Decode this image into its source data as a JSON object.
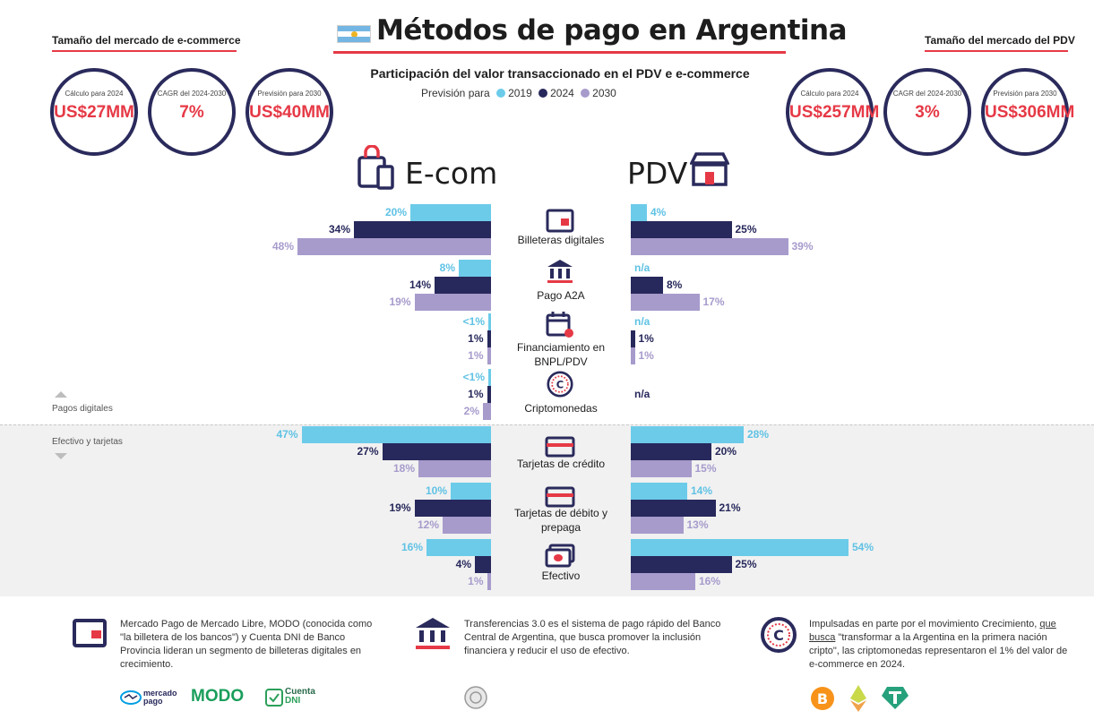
{
  "header": {
    "title": "Métodos de pago en Argentina",
    "subtitle": "Participación del valor transaccionado en el PDV e e-commerce",
    "legend_prefix": "Previsión para",
    "legend": [
      {
        "label": "2019",
        "color": "#6ccbe9"
      },
      {
        "label": "2024",
        "color": "#27285b"
      },
      {
        "label": "2030",
        "color": "#a79bcc"
      }
    ]
  },
  "ecom_market": {
    "title": "Tamaño del mercado de e-commerce",
    "stats": [
      {
        "caption": "Cálculo para 2024",
        "value": "US$27MM"
      },
      {
        "caption": "CAGR del 2024-2030",
        "value": "7%"
      },
      {
        "caption": "Previsión para 2030",
        "value": "US$40MM"
      }
    ]
  },
  "pdv_market": {
    "title": "Tamaño del mercado del PDV",
    "stats": [
      {
        "caption": "Cálculo para 2024",
        "value": "US$257MM"
      },
      {
        "caption": "CAGR del 2024-2030",
        "value": "3%"
      },
      {
        "caption": "Previsión para 2030",
        "value": "US$306MM"
      }
    ]
  },
  "sections": {
    "left": "E-com",
    "right": "PDV"
  },
  "zones": {
    "digital": "Pagos digitales",
    "cash": "Efectivo y tarjetas"
  },
  "chart_data": {
    "type": "bar",
    "series_names": [
      "2019",
      "2024",
      "2030"
    ],
    "categories": [
      {
        "name": "Billeteras digitales",
        "icon": "wallet-icon",
        "ecom": [
          {
            "v": 20,
            "t": "20%"
          },
          {
            "v": 34,
            "t": "34%"
          },
          {
            "v": 48,
            "t": "48%"
          }
        ],
        "pdv": [
          {
            "v": 4,
            "t": "4%"
          },
          {
            "v": 25,
            "t": "25%"
          },
          {
            "v": 39,
            "t": "39%"
          }
        ]
      },
      {
        "name": "Pago A2A",
        "icon": "bank-icon",
        "ecom": [
          {
            "v": 8,
            "t": "8%"
          },
          {
            "v": 14,
            "t": "14%"
          },
          {
            "v": 19,
            "t": "19%"
          }
        ],
        "pdv": [
          {
            "v": 0,
            "t": "n/a"
          },
          {
            "v": 8,
            "t": "8%"
          },
          {
            "v": 17,
            "t": "17%"
          }
        ]
      },
      {
        "name": "Financiamiento en BNPL/PDV",
        "icon": "calendar-icon",
        "ecom": [
          {
            "v": 0.5,
            "t": "<1%"
          },
          {
            "v": 1,
            "t": "1%"
          },
          {
            "v": 1,
            "t": "1%"
          }
        ],
        "pdv": [
          {
            "v": 0,
            "t": "n/a"
          },
          {
            "v": 1,
            "t": "1%"
          },
          {
            "v": 1,
            "t": "1%"
          }
        ]
      },
      {
        "name": "Criptomonedas",
        "icon": "crypto-coin-icon",
        "ecom": [
          {
            "v": 0.5,
            "t": "<1%"
          },
          {
            "v": 1,
            "t": "1%"
          },
          {
            "v": 2,
            "t": "2%"
          }
        ],
        "pdv": [
          {
            "v": 0,
            "t": ""
          },
          {
            "v": 0,
            "t": "n/a"
          },
          {
            "v": 0,
            "t": ""
          }
        ]
      },
      {
        "name": "Tarjetas de crédito",
        "icon": "credit-card-icon",
        "ecom": [
          {
            "v": 47,
            "t": "47%"
          },
          {
            "v": 27,
            "t": "27%"
          },
          {
            "v": 18,
            "t": "18%"
          }
        ],
        "pdv": [
          {
            "v": 28,
            "t": "28%"
          },
          {
            "v": 20,
            "t": "20%"
          },
          {
            "v": 15,
            "t": "15%"
          }
        ]
      },
      {
        "name": "Tarjetas de débito y prepaga",
        "icon": "debit-card-icon",
        "ecom": [
          {
            "v": 10,
            "t": "10%"
          },
          {
            "v": 19,
            "t": "19%"
          },
          {
            "v": 12,
            "t": "12%"
          }
        ],
        "pdv": [
          {
            "v": 14,
            "t": "14%"
          },
          {
            "v": 21,
            "t": "21%"
          },
          {
            "v": 13,
            "t": "13%"
          }
        ]
      },
      {
        "name": "Efectivo",
        "icon": "cash-icon",
        "ecom": [
          {
            "v": 16,
            "t": "16%"
          },
          {
            "v": 4,
            "t": "4%"
          },
          {
            "v": 1,
            "t": "1%"
          }
        ],
        "pdv": [
          {
            "v": 54,
            "t": "54%"
          },
          {
            "v": 25,
            "t": "25%"
          },
          {
            "v": 16,
            "t": "16%"
          }
        ]
      }
    ]
  },
  "footer": {
    "wallets_note": "Mercado Pago de Mercado Libre, MODO (conocida como \"la billetera de los bancos\") y Cuenta DNI de Banco Provincia lideran un segmento de billeteras digitales en crecimiento.",
    "transfers_note": "Transferencias 3.0 es el sistema de pago rápido del Banco Central de Argentina, que busca promover la inclusión financiera y reducir el uso de efectivo.",
    "crypto_note_1": "Impulsadas en parte por el movimiento Crecimiento,",
    "crypto_link": "que busca",
    "crypto_note_2": " \"transformar a la Argentina en la primera nación cripto\", las criptomonedas representaron el 1% del valor de e-commerce en 2024.",
    "brands": {
      "mercadopago_1": "mercado",
      "mercadopago_2": "pago",
      "modo": "MODO",
      "cuentadni_1": "Cuenta",
      "cuentadni_2": "DNI"
    }
  }
}
